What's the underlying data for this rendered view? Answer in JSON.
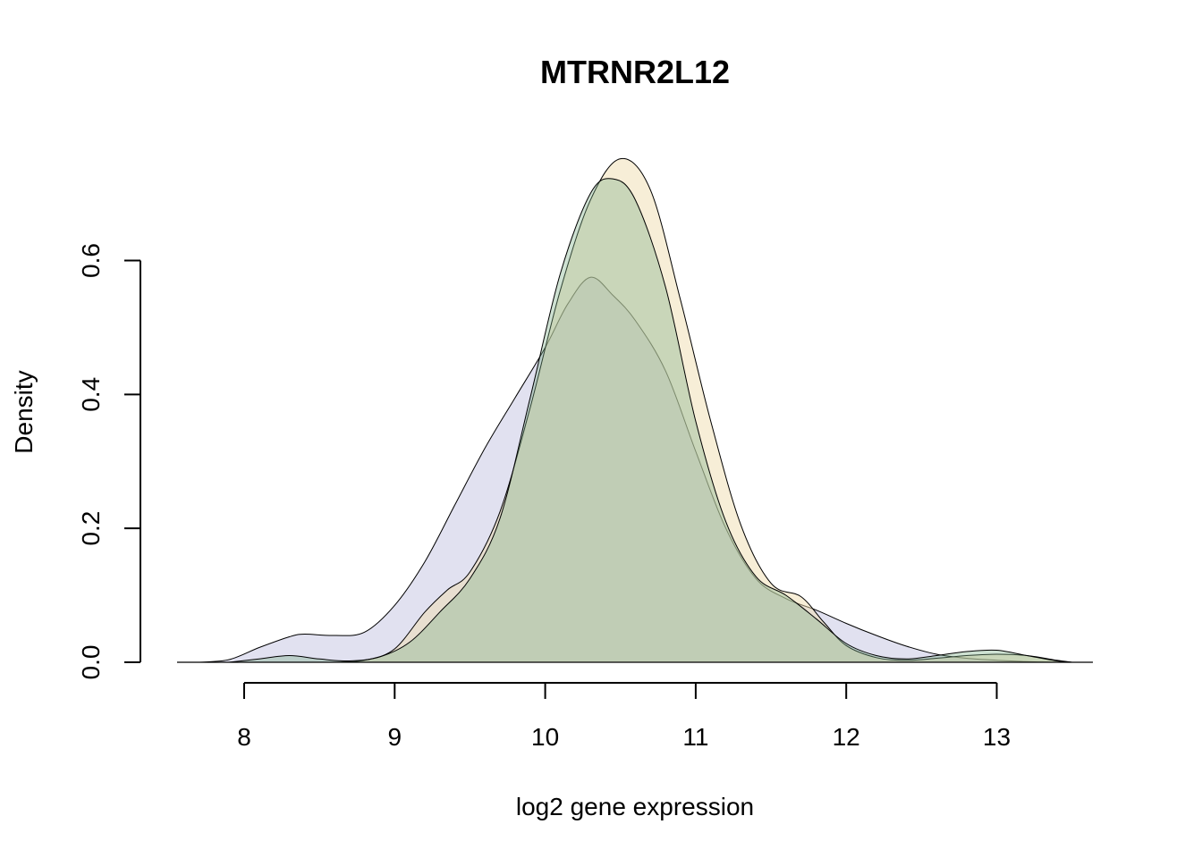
{
  "chart_data": {
    "type": "area",
    "title": "MTRNR2L12",
    "xlabel": "log2 gene expression",
    "ylabel": "Density",
    "xlim": [
      7.5,
      13.6
    ],
    "ylim": [
      0,
      0.6
    ],
    "x_ticks": [
      "8",
      "9",
      "10",
      "11",
      "12",
      "13"
    ],
    "y_ticks": [
      "0.0",
      "0.2",
      "0.4",
      "0.6"
    ],
    "grid": false,
    "series": [
      {
        "color": "#c8c8e4",
        "opacity": 0.55,
        "points": [
          [
            7.7,
            0.0
          ],
          [
            7.9,
            0.004
          ],
          [
            8.1,
            0.022
          ],
          [
            8.3,
            0.038
          ],
          [
            8.4,
            0.042
          ],
          [
            8.6,
            0.04
          ],
          [
            8.8,
            0.045
          ],
          [
            9.0,
            0.085
          ],
          [
            9.2,
            0.15
          ],
          [
            9.4,
            0.235
          ],
          [
            9.6,
            0.32
          ],
          [
            9.8,
            0.395
          ],
          [
            10.0,
            0.47
          ],
          [
            10.15,
            0.535
          ],
          [
            10.3,
            0.575
          ],
          [
            10.45,
            0.548
          ],
          [
            10.6,
            0.51
          ],
          [
            10.8,
            0.435
          ],
          [
            11.0,
            0.315
          ],
          [
            11.2,
            0.2
          ],
          [
            11.4,
            0.125
          ],
          [
            11.6,
            0.095
          ],
          [
            11.8,
            0.078
          ],
          [
            12.0,
            0.058
          ],
          [
            12.2,
            0.04
          ],
          [
            12.4,
            0.024
          ],
          [
            12.6,
            0.012
          ],
          [
            12.8,
            0.006
          ],
          [
            13.0,
            0.003
          ],
          [
            13.2,
            0.001
          ],
          [
            13.4,
            0.0
          ]
        ]
      },
      {
        "color": "#f0ddb0",
        "opacity": 0.5,
        "points": [
          [
            8.6,
            0.0
          ],
          [
            8.8,
            0.003
          ],
          [
            9.0,
            0.02
          ],
          [
            9.2,
            0.075
          ],
          [
            9.35,
            0.108
          ],
          [
            9.5,
            0.135
          ],
          [
            9.7,
            0.225
          ],
          [
            9.9,
            0.38
          ],
          [
            10.1,
            0.555
          ],
          [
            10.3,
            0.69
          ],
          [
            10.5,
            0.752
          ],
          [
            10.7,
            0.705
          ],
          [
            10.9,
            0.54
          ],
          [
            11.1,
            0.36
          ],
          [
            11.3,
            0.205
          ],
          [
            11.5,
            0.118
          ],
          [
            11.7,
            0.098
          ],
          [
            11.85,
            0.06
          ],
          [
            12.0,
            0.025
          ],
          [
            12.2,
            0.007
          ],
          [
            12.4,
            0.003
          ],
          [
            12.6,
            0.006
          ],
          [
            12.8,
            0.01
          ],
          [
            13.0,
            0.012
          ],
          [
            13.2,
            0.01
          ],
          [
            13.4,
            0.003
          ],
          [
            13.5,
            0.0
          ]
        ]
      },
      {
        "color": "#7fb089",
        "opacity": 0.38,
        "points": [
          [
            7.9,
            0.0
          ],
          [
            8.1,
            0.005
          ],
          [
            8.3,
            0.01
          ],
          [
            8.5,
            0.005
          ],
          [
            8.7,
            0.002
          ],
          [
            8.9,
            0.008
          ],
          [
            9.1,
            0.03
          ],
          [
            9.3,
            0.075
          ],
          [
            9.5,
            0.125
          ],
          [
            9.7,
            0.215
          ],
          [
            9.9,
            0.395
          ],
          [
            10.1,
            0.58
          ],
          [
            10.3,
            0.7
          ],
          [
            10.45,
            0.722
          ],
          [
            10.6,
            0.69
          ],
          [
            10.8,
            0.56
          ],
          [
            11.0,
            0.36
          ],
          [
            11.2,
            0.21
          ],
          [
            11.4,
            0.128
          ],
          [
            11.6,
            0.1
          ],
          [
            11.8,
            0.065
          ],
          [
            12.0,
            0.028
          ],
          [
            12.2,
            0.01
          ],
          [
            12.4,
            0.005
          ],
          [
            12.6,
            0.01
          ],
          [
            12.8,
            0.016
          ],
          [
            13.0,
            0.018
          ],
          [
            13.2,
            0.01
          ],
          [
            13.4,
            0.002
          ],
          [
            13.5,
            0.0
          ]
        ]
      }
    ]
  }
}
